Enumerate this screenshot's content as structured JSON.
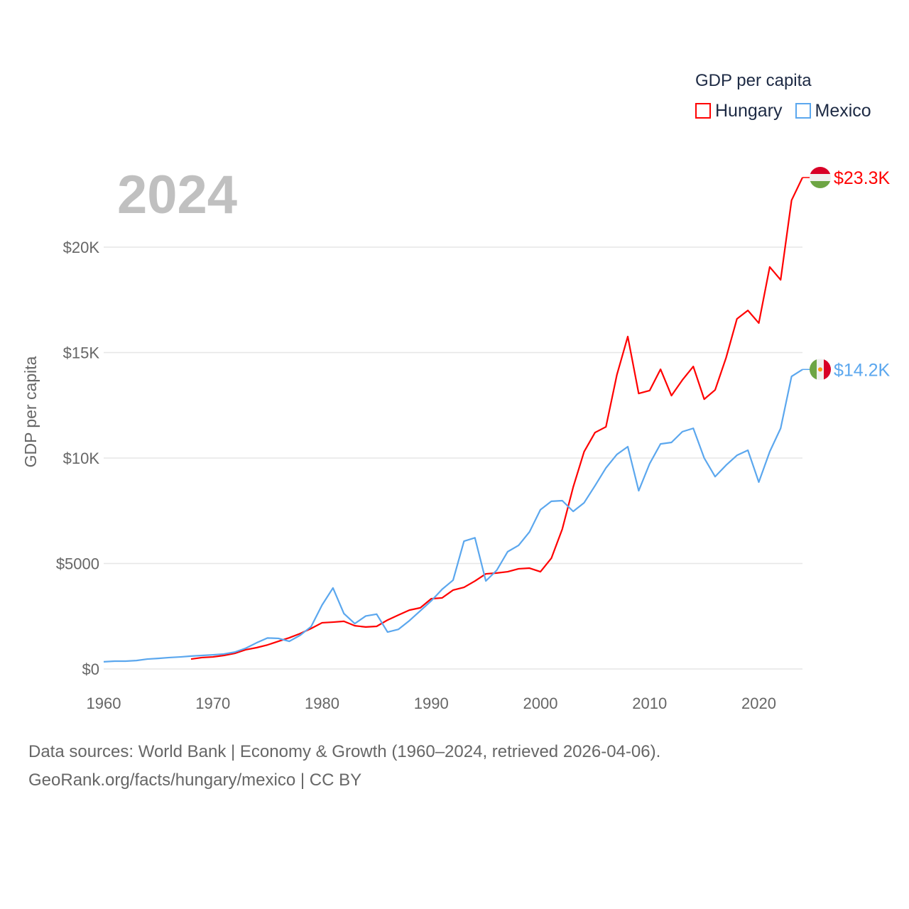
{
  "chart_data": {
    "type": "line",
    "title": "GDP per capita",
    "year_label": "2024",
    "ylabel": "GDP per capita",
    "xlabel": "",
    "xlim": [
      1960,
      2024
    ],
    "ylim": [
      0,
      23500
    ],
    "x_ticks": [
      1960,
      1970,
      1980,
      1990,
      2000,
      2010,
      2020
    ],
    "y_ticks": [
      {
        "v": 0,
        "label": "$0"
      },
      {
        "v": 5000,
        "label": "$5000"
      },
      {
        "v": 10000,
        "label": "$10K"
      },
      {
        "v": 15000,
        "label": "$15K"
      },
      {
        "v": 20000,
        "label": "$20K"
      }
    ],
    "grid": true,
    "legend_placement": "top-right",
    "series": [
      {
        "name": "Hungary",
        "color": "#ff0000",
        "flag": "hungary-flag",
        "end_label": "$23.3K",
        "start_year": 1968,
        "values": [
          470,
          540,
          570,
          640,
          740,
          910,
          1010,
          1140,
          1310,
          1480,
          1680,
          1920,
          2190,
          2220,
          2260,
          2050,
          1990,
          2020,
          2320,
          2560,
          2790,
          2900,
          3330,
          3370,
          3740,
          3870,
          4170,
          4510,
          4550,
          4610,
          4750,
          4780,
          4610,
          5250,
          6630,
          8620,
          10300,
          11210,
          11480,
          13940,
          15760,
          13060,
          13200,
          14210,
          12960,
          13700,
          14340,
          12790,
          13230,
          14750,
          16600,
          17000,
          16400,
          19060,
          18450,
          22220,
          23300
        ]
      },
      {
        "name": "Mexico",
        "color": "#5ba7ee",
        "flag": "mexico-flag",
        "end_label": "$14.2K",
        "start_year": 1960,
        "values": [
          340,
          370,
          370,
          400,
          470,
          500,
          540,
          570,
          610,
          640,
          670,
          710,
          800,
          980,
          1240,
          1470,
          1450,
          1310,
          1600,
          2010,
          3030,
          3840,
          2630,
          2150,
          2510,
          2600,
          1750,
          1880,
          2290,
          2760,
          3230,
          3780,
          4210,
          6060,
          6220,
          4170,
          4680,
          5560,
          5860,
          6500,
          7550,
          7950,
          7980,
          7470,
          7880,
          8690,
          9530,
          10170,
          10540,
          8450,
          9730,
          10670,
          10740,
          11250,
          11410,
          10000,
          9120,
          9660,
          10130,
          10370,
          8860,
          10300,
          11410,
          13870,
          14200
        ]
      }
    ]
  },
  "footer": {
    "line1": "Data sources: World Bank | Economy & Growth (1960–2024, retrieved 2026-04-06).",
    "line2": "GeoRank.org/facts/hungary/mexico | CC BY"
  }
}
